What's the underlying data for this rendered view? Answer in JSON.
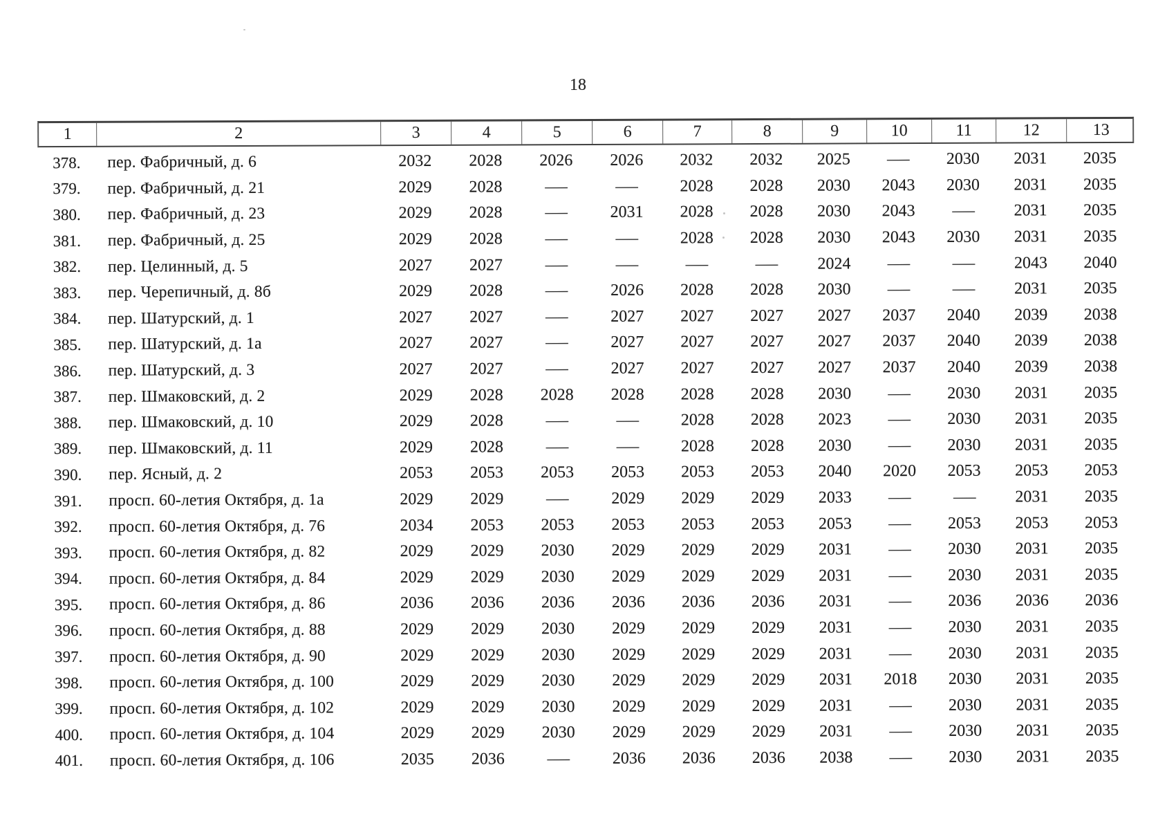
{
  "page": {
    "number": "18"
  },
  "table": {
    "headers": [
      "1",
      "2",
      "3",
      "4",
      "5",
      "6",
      "7",
      "8",
      "9",
      "10",
      "11",
      "12",
      "13"
    ],
    "dash_symbol": "—",
    "rows": [
      {
        "num": "378.",
        "address": "пер. Фабричный, д. 6",
        "values": [
          "2032",
          "2028",
          "2026",
          "2026",
          "2032",
          "2032",
          "2025",
          "—",
          "2030",
          "2031",
          "2035"
        ]
      },
      {
        "num": "379.",
        "address": "пер. Фабричный, д. 21",
        "values": [
          "2029",
          "2028",
          "—",
          "—",
          "2028",
          "2028",
          "2030",
          "2043",
          "2030",
          "2031",
          "2035"
        ]
      },
      {
        "num": "380.",
        "address": "пер. Фабричный, д. 23",
        "values": [
          "2029",
          "2028",
          "—",
          "2031",
          "2028",
          "2028",
          "2030",
          "2043",
          "—",
          "2031",
          "2035"
        ]
      },
      {
        "num": "381.",
        "address": "пер. Фабричный, д. 25",
        "values": [
          "2029",
          "2028",
          "—",
          "—",
          "2028",
          "2028",
          "2030",
          "2043",
          "2030",
          "2031",
          "2035"
        ]
      },
      {
        "num": "382.",
        "address": "пер. Целинный, д. 5",
        "values": [
          "2027",
          "2027",
          "—",
          "—",
          "—",
          "—",
          "2024",
          "—",
          "—",
          "2043",
          "2040"
        ]
      },
      {
        "num": "383.",
        "address": "пер. Черепичный, д. 8б",
        "values": [
          "2029",
          "2028",
          "—",
          "2026",
          "2028",
          "2028",
          "2030",
          "—",
          "—",
          "2031",
          "2035"
        ]
      },
      {
        "num": "384.",
        "address": "пер. Шатурский, д. 1",
        "values": [
          "2027",
          "2027",
          "—",
          "2027",
          "2027",
          "2027",
          "2027",
          "2037",
          "2040",
          "2039",
          "2038"
        ]
      },
      {
        "num": "385.",
        "address": "пер. Шатурский, д. 1а",
        "values": [
          "2027",
          "2027",
          "—",
          "2027",
          "2027",
          "2027",
          "2027",
          "2037",
          "2040",
          "2039",
          "2038"
        ]
      },
      {
        "num": "386.",
        "address": "пер. Шатурский, д. 3",
        "values": [
          "2027",
          "2027",
          "—",
          "2027",
          "2027",
          "2027",
          "2027",
          "2037",
          "2040",
          "2039",
          "2038"
        ]
      },
      {
        "num": "387.",
        "address": "пер. Шмаковский, д. 2",
        "values": [
          "2029",
          "2028",
          "2028",
          "2028",
          "2028",
          "2028",
          "2030",
          "—",
          "2030",
          "2031",
          "2035"
        ]
      },
      {
        "num": "388.",
        "address": "пер. Шмаковский, д. 10",
        "values": [
          "2029",
          "2028",
          "—",
          "—",
          "2028",
          "2028",
          "2023",
          "—",
          "2030",
          "2031",
          "2035"
        ]
      },
      {
        "num": "389.",
        "address": "пер. Шмаковский, д. 11",
        "values": [
          "2029",
          "2028",
          "—",
          "—",
          "2028",
          "2028",
          "2030",
          "—",
          "2030",
          "2031",
          "2035"
        ]
      },
      {
        "num": "390.",
        "address": "пер. Ясный, д. 2",
        "values": [
          "2053",
          "2053",
          "2053",
          "2053",
          "2053",
          "2053",
          "2040",
          "2020",
          "2053",
          "2053",
          "2053"
        ]
      },
      {
        "num": "391.",
        "address": "просп. 60-летия Октября, д. 1а",
        "values": [
          "2029",
          "2029",
          "—",
          "2029",
          "2029",
          "2029",
          "2033",
          "—",
          "—",
          "2031",
          "2035"
        ]
      },
      {
        "num": "392.",
        "address": "просп. 60-летия Октября, д. 76",
        "values": [
          "2034",
          "2053",
          "2053",
          "2053",
          "2053",
          "2053",
          "2053",
          "—",
          "2053",
          "2053",
          "2053"
        ]
      },
      {
        "num": "393.",
        "address": "просп. 60-летия Октября, д. 82",
        "values": [
          "2029",
          "2029",
          "2030",
          "2029",
          "2029",
          "2029",
          "2031",
          "—",
          "2030",
          "2031",
          "2035"
        ]
      },
      {
        "num": "394.",
        "address": "просп. 60-летия Октября, д. 84",
        "values": [
          "2029",
          "2029",
          "2030",
          "2029",
          "2029",
          "2029",
          "2031",
          "—",
          "2030",
          "2031",
          "2035"
        ]
      },
      {
        "num": "395.",
        "address": "просп. 60-летия Октября, д. 86",
        "values": [
          "2036",
          "2036",
          "2036",
          "2036",
          "2036",
          "2036",
          "2031",
          "—",
          "2036",
          "2036",
          "2036"
        ]
      },
      {
        "num": "396.",
        "address": "просп. 60-летия Октября, д. 88",
        "values": [
          "2029",
          "2029",
          "2030",
          "2029",
          "2029",
          "2029",
          "2031",
          "—",
          "2030",
          "2031",
          "2035"
        ]
      },
      {
        "num": "397.",
        "address": "просп. 60-летия Октября, д. 90",
        "values": [
          "2029",
          "2029",
          "2030",
          "2029",
          "2029",
          "2029",
          "2031",
          "—",
          "2030",
          "2031",
          "2035"
        ]
      },
      {
        "num": "398.",
        "address": "просп. 60-летия Октября, д. 100",
        "values": [
          "2029",
          "2029",
          "2030",
          "2029",
          "2029",
          "2029",
          "2031",
          "2018",
          "2030",
          "2031",
          "2035"
        ]
      },
      {
        "num": "399.",
        "address": "просп. 60-летия Октября, д. 102",
        "values": [
          "2029",
          "2029",
          "2030",
          "2029",
          "2029",
          "2029",
          "2031",
          "—",
          "2030",
          "2031",
          "2035"
        ]
      },
      {
        "num": "400.",
        "address": "просп. 60-летия Октября, д. 104",
        "values": [
          "2029",
          "2029",
          "2030",
          "2029",
          "2029",
          "2029",
          "2031",
          "—",
          "2030",
          "2031",
          "2035"
        ]
      },
      {
        "num": "401.",
        "address": "просп. 60-летия Октября, д. 106",
        "values": [
          "2035",
          "2036",
          "—",
          "2036",
          "2036",
          "2036",
          "2038",
          "—",
          "2030",
          "2031",
          "2035"
        ]
      }
    ]
  }
}
